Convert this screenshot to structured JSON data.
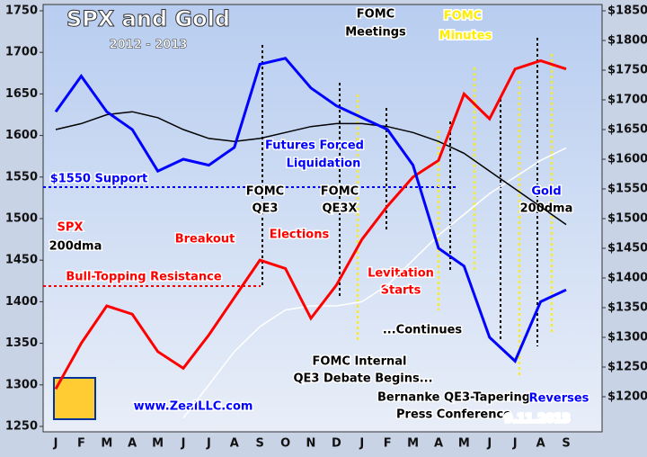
{
  "chart_data": {
    "type": "line",
    "title": "SPX and Gold",
    "subtitle": "2012 - 2013",
    "categories": [
      "J",
      "F",
      "M",
      "A",
      "M",
      "J",
      "J",
      "A",
      "S",
      "O",
      "N",
      "D",
      "J",
      "F",
      "M",
      "A",
      "M",
      "J",
      "J",
      "A",
      "S"
    ],
    "ylim": [
      1250,
      1750
    ],
    "yticks": [
      1250,
      1300,
      1350,
      1400,
      1450,
      1500,
      1550,
      1600,
      1650,
      1700,
      1750
    ],
    "y2lim": [
      1150,
      1850
    ],
    "y2ticks": [
      {
        "value": 1200,
        "label": "$1200"
      },
      {
        "value": 1250,
        "label": "$1250"
      },
      {
        "value": 1300,
        "label": "$1300"
      },
      {
        "value": 1350,
        "label": "$1350"
      },
      {
        "value": 1400,
        "label": "$1400"
      },
      {
        "value": 1450,
        "label": "$1450"
      },
      {
        "value": 1500,
        "label": "$1500"
      },
      {
        "value": 1550,
        "label": "$1550"
      },
      {
        "value": 1600,
        "label": "$1600"
      },
      {
        "value": 1650,
        "label": "$1650"
      },
      {
        "value": 1700,
        "label": "$1700"
      },
      {
        "value": 1750,
        "label": "$1750"
      },
      {
        "value": 1800,
        "label": "$1800"
      },
      {
        "value": 1850,
        "label": "$1850"
      }
    ],
    "series": [
      {
        "name": "SPX",
        "color": "#ff0000",
        "values": [
          1295,
          1350,
          1395,
          1385,
          1340,
          1320,
          1360,
          1405,
          1450,
          1440,
          1380,
          1420,
          1475,
          1515,
          1550,
          1570,
          1650,
          1620,
          1680,
          1690,
          1680
        ]
      },
      {
        "name": "Gold",
        "color": "#0000ff",
        "axis": "y2",
        "values": [
          1680,
          1740,
          1680,
          1650,
          1580,
          1600,
          1590,
          1620,
          1760,
          1770,
          1720,
          1690,
          1670,
          1650,
          1590,
          1450,
          1420,
          1300,
          1260,
          1360,
          1380
        ]
      },
      {
        "name": "200dma",
        "color": "#000000",
        "axis": "y2",
        "values": [
          1650,
          1660,
          1675,
          1680,
          1670,
          1650,
          1635,
          1630,
          1635,
          1645,
          1655,
          1660,
          1660,
          1655,
          1645,
          1630,
          1610,
          1580,
          1550,
          1520,
          1490
        ]
      },
      {
        "name": "200dma",
        "color": "#ffffff",
        "values": [
          null,
          null,
          null,
          null,
          null,
          1260,
          1300,
          1340,
          1370,
          1390,
          1395,
          1395,
          1400,
          1420,
          1450,
          1480,
          1505,
          1530,
          1550,
          1570,
          1585
        ]
      }
    ],
    "annotations": [
      "FOMC",
      "Meetings",
      "FOMC",
      "Minutes",
      "Futures Forced",
      "Liquidation",
      "$1550 Support",
      "FOMC",
      "QE3",
      "FOMC",
      "QE3X",
      "Breakout",
      "Elections",
      "Bull-Topping Resistance",
      "Levitation",
      "Starts",
      "...Continues",
      "FOMC Internal",
      "QE3 Debate Begins...",
      "Bernanke QE3-Tapering",
      "Press Conference",
      "Reverses",
      "www.ZealLLC.com",
      "9.11.2013"
    ]
  }
}
